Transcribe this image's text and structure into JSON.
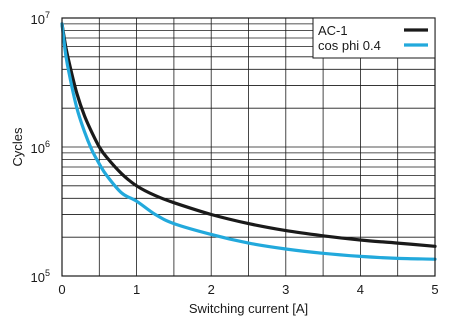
{
  "chart_data": {
    "type": "line",
    "xlabel": "Switching current [A]",
    "ylabel": "Cycles",
    "xlim": [
      0,
      5
    ],
    "ylim": [
      100000,
      10000000
    ],
    "y_scale": "log",
    "x_ticks": [
      "0",
      "1",
      "2",
      "3",
      "4",
      "5"
    ],
    "y_ticks": [
      {
        "value": 100000,
        "base": "10",
        "exp": "5"
      },
      {
        "value": 1000000,
        "base": "10",
        "exp": "6"
      },
      {
        "value": 10000000,
        "base": "10",
        "exp": "7"
      }
    ],
    "grid": true,
    "legend_position": "top-right",
    "series": [
      {
        "name": "AC-1",
        "color": "#1a1a1a",
        "x": [
          0,
          0.05,
          0.1,
          0.2,
          0.3,
          0.4,
          0.5,
          0.6,
          0.8,
          1.0,
          1.25,
          1.5,
          2.0,
          2.5,
          3.0,
          3.5,
          4.0,
          4.5,
          5.0
        ],
        "y": [
          9000000,
          6000000,
          4400000,
          2600000,
          1750000,
          1300000,
          1000000,
          830000,
          620000,
          500000,
          420000,
          370000,
          300000,
          255000,
          225000,
          205000,
          190000,
          180000,
          170000
        ]
      },
      {
        "name": "cos phi 0.4",
        "color": "#22a9dc",
        "x": [
          0,
          0.05,
          0.1,
          0.2,
          0.3,
          0.4,
          0.5,
          0.6,
          0.8,
          1.0,
          1.25,
          1.5,
          2.0,
          2.5,
          3.0,
          3.5,
          4.0,
          4.5,
          5.0
        ],
        "y": [
          9000000,
          5200000,
          3600000,
          2000000,
          1320000,
          950000,
          740000,
          600000,
          440000,
          380000,
          300000,
          255000,
          210000,
          180000,
          162000,
          150000,
          142000,
          137000,
          135000
        ]
      }
    ]
  }
}
